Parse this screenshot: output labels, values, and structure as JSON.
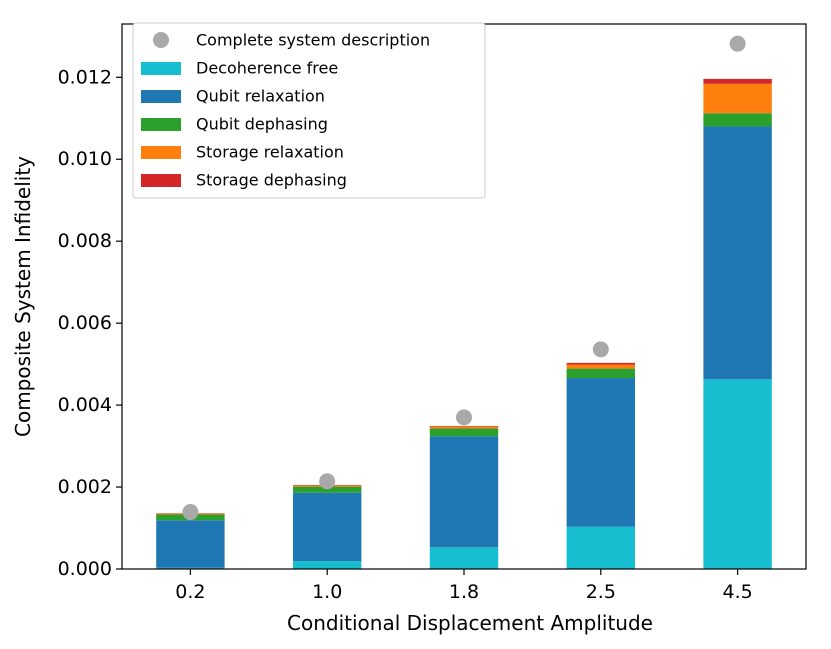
{
  "chart_data": {
    "type": "bar",
    "stacked": true,
    "title": "",
    "xlabel": "Conditional Displacement Amplitude",
    "ylabel": "Composite System Infidelity",
    "ylim": [
      0,
      0.0133
    ],
    "yticks": [
      "0.000",
      "0.002",
      "0.004",
      "0.006",
      "0.008",
      "0.010",
      "0.012"
    ],
    "ytick_values": [
      0,
      0.002,
      0.004,
      0.006,
      0.008,
      0.01,
      0.012
    ],
    "categories": [
      "0.2",
      "1.0",
      "1.8",
      "2.5",
      "4.5"
    ],
    "series": [
      {
        "name": "Decoherence free",
        "color": "#17becf",
        "values": [
          3e-05,
          0.00019,
          0.00053,
          0.00103,
          0.00463
        ]
      },
      {
        "name": "Qubit relaxation",
        "color": "#1f77b4",
        "values": [
          0.00116,
          0.00167,
          0.00271,
          0.00363,
          0.00617
        ]
      },
      {
        "name": "Qubit dephasing",
        "color": "#2ca02c",
        "values": [
          0.00014,
          0.00015,
          0.00019,
          0.00023,
          0.00032
        ]
      },
      {
        "name": "Storage relaxation",
        "color": "#ff7f0e",
        "values": [
          2e-05,
          3e-05,
          5e-05,
          0.0001,
          0.00072
        ]
      },
      {
        "name": "Storage dephasing",
        "color": "#d62728",
        "values": [
          1e-05,
          1e-05,
          1e-05,
          4e-05,
          0.00012
        ]
      }
    ],
    "points": {
      "name": "Complete system description",
      "color": "#a9a9a9",
      "values": [
        0.00139,
        0.00214,
        0.0037,
        0.00536,
        0.01282
      ]
    },
    "legend": {
      "placement": "top-left",
      "entries": [
        {
          "label": "Complete system description",
          "kind": "marker",
          "color": "#a9a9a9"
        },
        {
          "label": "Decoherence free",
          "kind": "patch",
          "color": "#17becf"
        },
        {
          "label": "Qubit relaxation",
          "kind": "patch",
          "color": "#1f77b4"
        },
        {
          "label": "Qubit dephasing",
          "kind": "patch",
          "color": "#2ca02c"
        },
        {
          "label": "Storage relaxation",
          "kind": "patch",
          "color": "#ff7f0e"
        },
        {
          "label": "Storage dephasing",
          "kind": "patch",
          "color": "#d62728"
        }
      ]
    }
  }
}
